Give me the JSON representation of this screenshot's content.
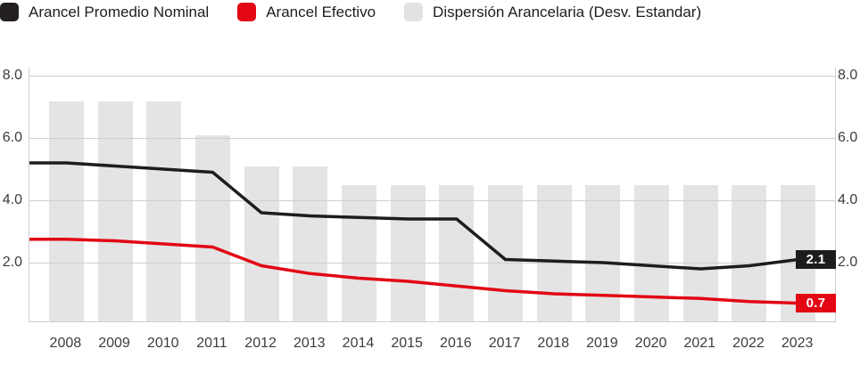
{
  "legend": {
    "items": [
      {
        "id": "nominal",
        "label": "Arancel Promedio Nominal",
        "color": "#231f20"
      },
      {
        "id": "efectivo",
        "label": "Arancel Efectivo",
        "color": "#e30613"
      },
      {
        "id": "dispersion",
        "label": "Dispersión Arancelaria (Desv. Estandar)",
        "color": "#e2e2e2"
      }
    ]
  },
  "y_axis": {
    "left_ticks": [
      "8.0",
      "6.0",
      "4.0",
      "2.0"
    ],
    "right_ticks": [
      "8.0",
      "6.0",
      "4.0",
      "2.0"
    ],
    "tick_values": [
      8,
      6,
      4,
      2
    ]
  },
  "chart_data": {
    "type": "bar+line",
    "categories": [
      "2008",
      "2009",
      "2010",
      "2011",
      "2012",
      "2013",
      "2014",
      "2015",
      "2016",
      "2017",
      "2018",
      "2019",
      "2020",
      "2021",
      "2022",
      "2023"
    ],
    "series": [
      {
        "name": "Dispersión Arancelaria (Desv. Estandar)",
        "type": "bar",
        "color": "#e4e4e4",
        "values": [
          7.3,
          7.3,
          7.3,
          6.2,
          5.2,
          5.2,
          4.6,
          4.6,
          4.6,
          4.6,
          4.6,
          4.6,
          4.6,
          4.6,
          4.6,
          4.6
        ]
      },
      {
        "name": "Arancel Promedio Nominal",
        "type": "line",
        "color": "#1d1d1b",
        "values": [
          5.2,
          5.1,
          5.0,
          4.9,
          3.6,
          3.5,
          3.45,
          3.4,
          3.4,
          2.1,
          2.05,
          2.0,
          1.9,
          1.8,
          1.9,
          2.1
        ],
        "end_label": "2.1"
      },
      {
        "name": "Arancel Efectivo",
        "type": "line",
        "color": "#e30613",
        "values": [
          2.75,
          2.7,
          2.6,
          2.5,
          1.9,
          1.65,
          1.5,
          1.4,
          1.25,
          1.1,
          1.0,
          0.95,
          0.9,
          0.85,
          0.75,
          0.7
        ],
        "end_label": "0.7"
      }
    ],
    "ylim": [
      0,
      8.3
    ],
    "grid": "horizontal",
    "legend_position": "top-left",
    "axis_sides": "left+right"
  }
}
